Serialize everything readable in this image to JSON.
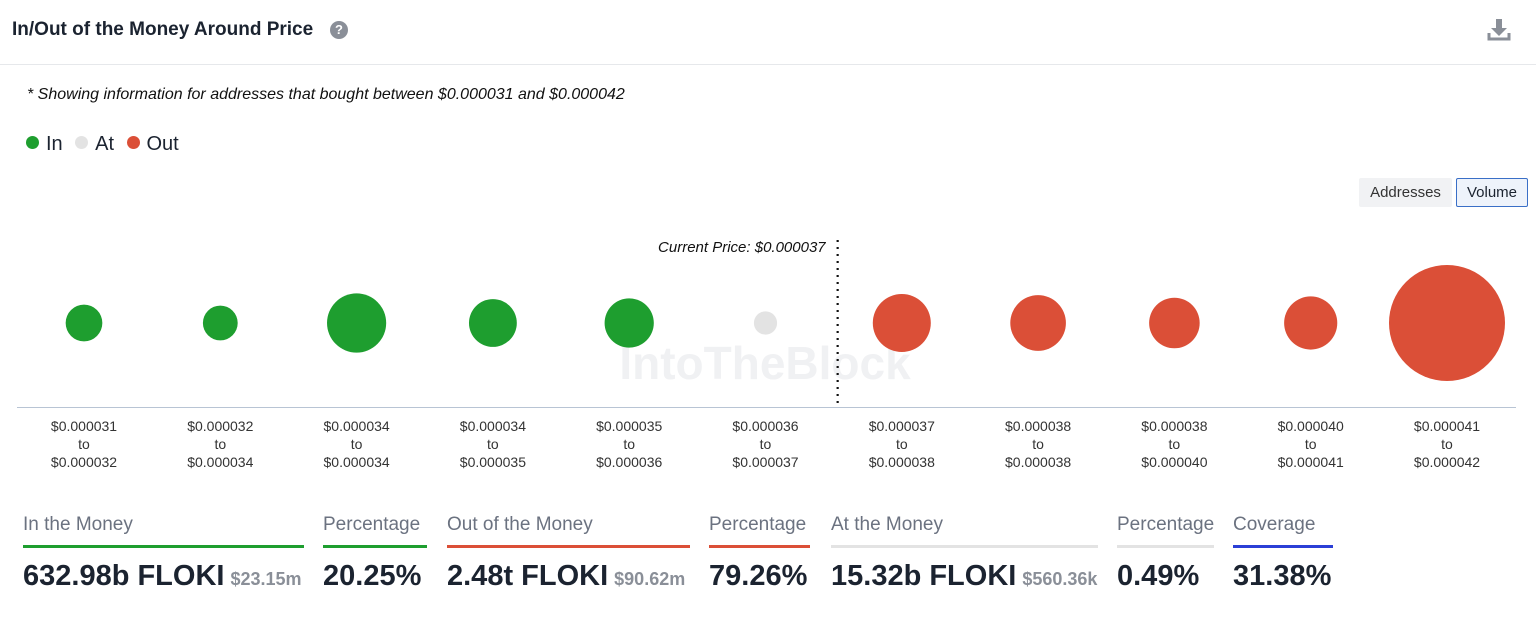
{
  "header": {
    "title": "In/Out of the Money Around Price",
    "help_glyph": "?",
    "help_icon": "question-circle-icon",
    "download_icon": "download-icon"
  },
  "note": "* Showing information for addresses that bought between $0.000031 and $0.000042",
  "legend": [
    {
      "label": "In",
      "color": "#1e9e2f"
    },
    {
      "label": "At",
      "color": "#e3e3e3"
    },
    {
      "label": "Out",
      "color": "#db4f37"
    }
  ],
  "toggle": {
    "addresses_label": "Addresses",
    "volume_label": "Volume",
    "selected": "Volume"
  },
  "chart_data": {
    "type": "scatter",
    "encoding": "bubble size = volume",
    "current_price_label": "Current Price: $0.000037",
    "current_price_after_index": 5,
    "categories": [
      {
        "from": "$0.000031",
        "to": "$0.000032",
        "status": "in",
        "relative_volume": 0.1
      },
      {
        "from": "$0.000032",
        "to": "$0.000034",
        "status": "in",
        "relative_volume": 0.09
      },
      {
        "from": "$0.000034",
        "to": "$0.000034",
        "status": "in",
        "relative_volume": 0.26
      },
      {
        "from": "$0.000034",
        "to": "$0.000035",
        "status": "in",
        "relative_volume": 0.17
      },
      {
        "from": "$0.000035",
        "to": "$0.000036",
        "status": "in",
        "relative_volume": 0.18
      },
      {
        "from": "$0.000036",
        "to": "$0.000037",
        "status": "at",
        "relative_volume": 0.04
      },
      {
        "from": "$0.000037",
        "to": "$0.000038",
        "status": "out",
        "relative_volume": 0.25
      },
      {
        "from": "$0.000038",
        "to": "$0.000038",
        "status": "out",
        "relative_volume": 0.23
      },
      {
        "from": "$0.000038",
        "to": "$0.000040",
        "status": "out",
        "relative_volume": 0.19
      },
      {
        "from": "$0.000040",
        "to": "$0.000041",
        "status": "out",
        "relative_volume": 0.21
      },
      {
        "from": "$0.000041",
        "to": "$0.000042",
        "status": "out",
        "relative_volume": 1.0
      }
    ],
    "to_word": "to",
    "watermark": "IntoTheBlock"
  },
  "stats": {
    "in_money": {
      "label": "In the Money",
      "value": "632.98b FLOKI",
      "usd": "$23.15m",
      "color": "#1e9e2f"
    },
    "in_pct": {
      "label": "Percentage",
      "value": "20.25%",
      "color": "#1e9e2f"
    },
    "out_money": {
      "label": "Out of the Money",
      "value": "2.48t FLOKI",
      "usd": "$90.62m",
      "color": "#db4f37"
    },
    "out_pct": {
      "label": "Percentage",
      "value": "79.26%",
      "color": "#db4f37"
    },
    "at_money": {
      "label": "At the Money",
      "value": "15.32b FLOKI",
      "usd": "$560.36k",
      "color": "#e3e3e3"
    },
    "at_pct": {
      "label": "Percentage",
      "value": "0.49%",
      "color": "#e3e3e3"
    },
    "coverage": {
      "label": "Coverage",
      "value": "31.38%",
      "color": "#2b3fd6"
    }
  }
}
